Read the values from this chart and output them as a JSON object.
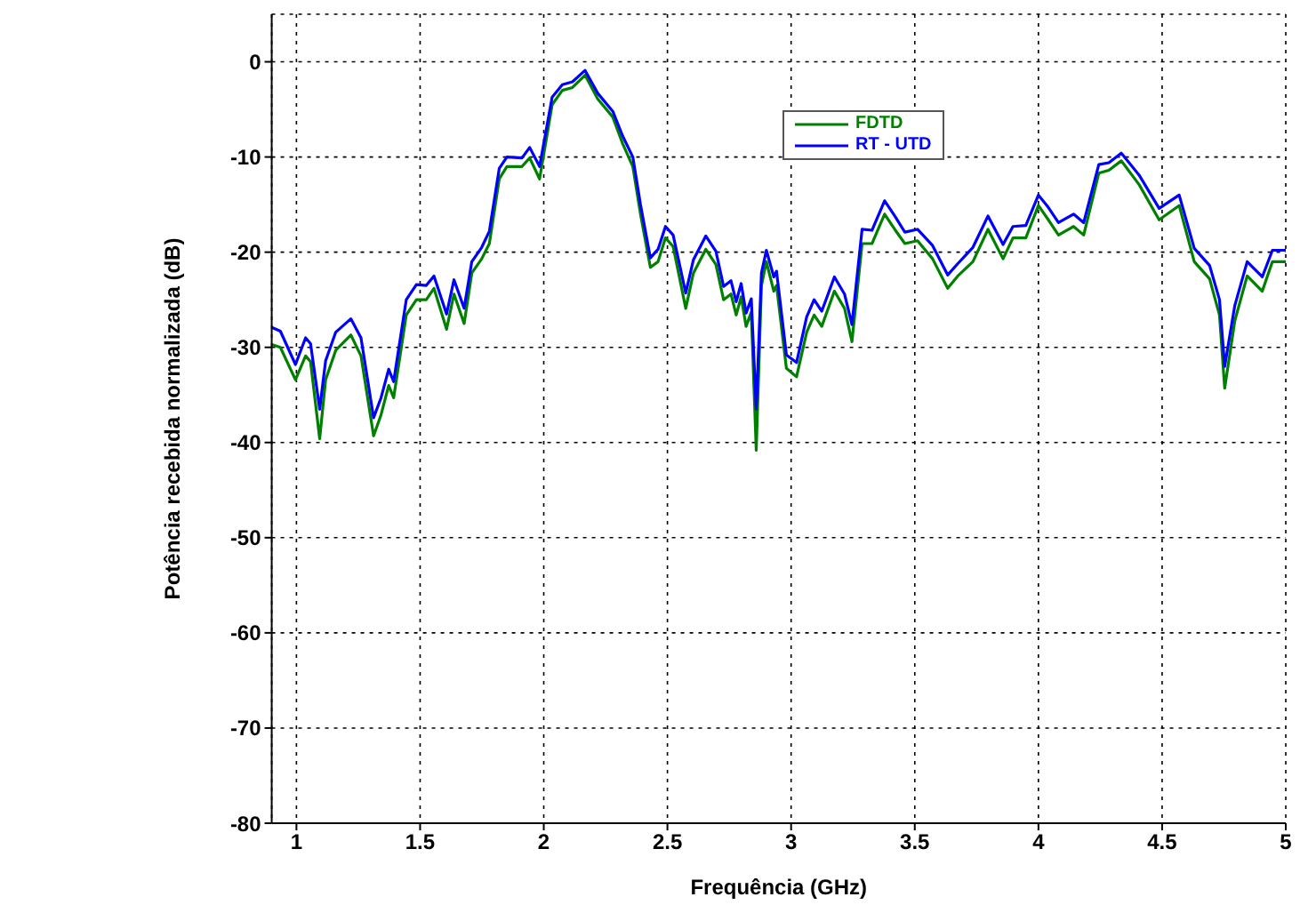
{
  "chart_data": {
    "type": "line",
    "xlabel": "Frequência (GHz)",
    "ylabel": "Potência recebida normalizada (dB)",
    "x": [
      0.9,
      0.935,
      0.996,
      1.037,
      1.057,
      1.094,
      1.118,
      1.159,
      1.22,
      1.261,
      1.312,
      1.342,
      1.373,
      1.393,
      1.444,
      1.485,
      1.525,
      1.556,
      1.607,
      1.637,
      1.678,
      1.709,
      1.749,
      1.78,
      1.82,
      1.851,
      1.912,
      1.943,
      1.983,
      2.034,
      2.075,
      2.116,
      2.167,
      2.218,
      2.279,
      2.319,
      2.36,
      2.391,
      2.431,
      2.462,
      2.492,
      2.523,
      2.574,
      2.605,
      2.655,
      2.696,
      2.727,
      2.757,
      2.778,
      2.798,
      2.818,
      2.839,
      2.859,
      2.88,
      2.9,
      2.93,
      2.941,
      2.981,
      3.022,
      3.063,
      3.093,
      3.124,
      3.175,
      3.216,
      3.246,
      3.287,
      3.327,
      3.378,
      3.419,
      3.46,
      3.511,
      3.572,
      3.633,
      3.674,
      3.735,
      3.796,
      3.857,
      3.897,
      3.949,
      4.0,
      4.04,
      4.081,
      4.142,
      4.183,
      4.244,
      4.285,
      4.335,
      4.407,
      4.488,
      4.569,
      4.63,
      4.692,
      4.732,
      4.753,
      4.794,
      4.844,
      4.905,
      4.946,
      5.0
    ],
    "series": [
      {
        "name": "FDTD",
        "color": "#008000",
        "values": [
          -29.7,
          -30.0,
          -33.4,
          -30.9,
          -31.5,
          -39.6,
          -33.4,
          -30.3,
          -28.7,
          -30.9,
          -39.3,
          -37.1,
          -34.0,
          -35.3,
          -26.6,
          -25.0,
          -25.0,
          -23.8,
          -28.1,
          -24.4,
          -27.5,
          -22.2,
          -20.7,
          -19.1,
          -12.3,
          -11.0,
          -11.0,
          -10.1,
          -12.3,
          -4.5,
          -3.0,
          -2.7,
          -1.4,
          -3.9,
          -5.8,
          -8.6,
          -11.0,
          -16.0,
          -21.6,
          -21.0,
          -18.5,
          -19.4,
          -25.9,
          -22.2,
          -19.7,
          -21.3,
          -25.0,
          -24.4,
          -26.6,
          -24.7,
          -27.8,
          -26.3,
          -40.8,
          -23.5,
          -21.0,
          -24.1,
          -23.5,
          -32.2,
          -33.1,
          -28.4,
          -26.6,
          -27.8,
          -24.1,
          -25.9,
          -29.4,
          -19.1,
          -19.1,
          -16.0,
          -17.6,
          -19.1,
          -18.8,
          -20.7,
          -23.8,
          -22.5,
          -21.0,
          -17.6,
          -20.7,
          -18.5,
          -18.5,
          -15.1,
          -16.6,
          -18.2,
          -17.3,
          -18.2,
          -11.7,
          -11.4,
          -10.4,
          -12.9,
          -16.6,
          -15.1,
          -21.0,
          -22.8,
          -26.6,
          -34.3,
          -27.2,
          -22.5,
          -24.1,
          -21.0,
          -21.0
        ]
      },
      {
        "name": "RT - UTD",
        "color": "#0000ff",
        "values": [
          -27.9,
          -28.3,
          -31.8,
          -29.0,
          -29.6,
          -36.5,
          -31.4,
          -28.4,
          -27.0,
          -29.0,
          -37.4,
          -35.3,
          -32.3,
          -33.6,
          -25.0,
          -23.4,
          -23.5,
          -22.5,
          -26.5,
          -22.9,
          -25.9,
          -21.0,
          -19.5,
          -17.8,
          -11.2,
          -10.0,
          -10.1,
          -9.0,
          -11.0,
          -3.7,
          -2.4,
          -2.1,
          -0.9,
          -3.3,
          -5.2,
          -7.8,
          -10.0,
          -15.0,
          -20.6,
          -19.7,
          -17.3,
          -18.2,
          -24.3,
          -20.8,
          -18.3,
          -19.9,
          -23.6,
          -23.0,
          -25.2,
          -23.3,
          -26.4,
          -24.9,
          -36.5,
          -22.2,
          -19.8,
          -22.6,
          -22.0,
          -30.8,
          -31.6,
          -26.8,
          -25.0,
          -26.2,
          -22.6,
          -24.4,
          -27.6,
          -17.6,
          -17.7,
          -14.6,
          -16.2,
          -17.9,
          -17.6,
          -19.3,
          -22.4,
          -21.2,
          -19.5,
          -16.2,
          -19.2,
          -17.3,
          -17.2,
          -14.0,
          -15.3,
          -16.9,
          -16.0,
          -16.9,
          -10.8,
          -10.6,
          -9.6,
          -11.9,
          -15.4,
          -14.0,
          -19.6,
          -21.4,
          -25.0,
          -32.0,
          -25.6,
          -21.0,
          -22.6,
          -19.8,
          -19.8
        ]
      }
    ],
    "xlim": [
      0.9,
      5
    ],
    "xticks": [
      1,
      1.5,
      2,
      2.5,
      3,
      3.5,
      4,
      4.5,
      5
    ],
    "ylim": [
      -80,
      5
    ],
    "yticks": [
      -80,
      -70,
      -60,
      -50,
      -40,
      -30,
      -20,
      -10,
      0
    ],
    "grid": true,
    "legend": "top right"
  }
}
